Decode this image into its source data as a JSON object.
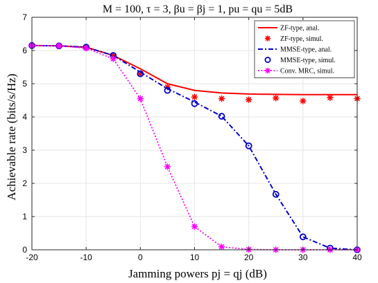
{
  "chart_data": {
    "type": "line",
    "title": "M = 100, τ = 3, βu = βj = 1, pu = qu = 5dB",
    "xlabel": "Jamming powers pj = qj (dB)",
    "ylabel": "Achievable rate (bits/s/Hz)",
    "xlim": [
      -20,
      40
    ],
    "ylim": [
      0,
      7
    ],
    "xticks": [
      -20,
      -10,
      0,
      10,
      20,
      30,
      40
    ],
    "yticks": [
      0,
      1,
      2,
      3,
      4,
      5,
      6,
      7
    ],
    "grid": true,
    "legend_position": "top-right",
    "series": [
      {
        "name": "ZF-type, anal.",
        "style": "solid-line",
        "color": "#ff0000",
        "x": [
          -20,
          -15,
          -10,
          -5,
          0,
          5,
          10,
          15,
          20,
          25,
          30,
          35,
          40
        ],
        "y": [
          6.15,
          6.14,
          6.1,
          5.85,
          5.45,
          5.0,
          4.8,
          4.72,
          4.69,
          4.68,
          4.67,
          4.67,
          4.67
        ]
      },
      {
        "name": "ZF-type, simul.",
        "style": "star-markers",
        "color": "#ff0000",
        "x": [
          -20,
          -15,
          -10,
          -5,
          0,
          5,
          10,
          15,
          20,
          25,
          30,
          35,
          40
        ],
        "y": [
          6.15,
          6.14,
          6.1,
          5.85,
          5.3,
          4.9,
          4.6,
          4.55,
          4.52,
          4.57,
          4.48,
          4.58,
          4.55
        ]
      },
      {
        "name": "MMSE-type, anal.",
        "style": "dash-dot-line",
        "color": "#0000cc",
        "x": [
          -20,
          -15,
          -10,
          -5,
          0,
          5,
          10,
          15,
          20,
          25,
          30,
          35,
          40
        ],
        "y": [
          6.15,
          6.14,
          6.1,
          5.85,
          5.35,
          4.85,
          4.45,
          4.02,
          3.13,
          1.67,
          0.39,
          0.05,
          0.0
        ]
      },
      {
        "name": "MMSE-type, simul.",
        "style": "circle-markers",
        "color": "#0000cc",
        "x": [
          -20,
          -15,
          -10,
          -5,
          0,
          5,
          10,
          15,
          20,
          25,
          30,
          35,
          40
        ],
        "y": [
          6.15,
          6.14,
          6.1,
          5.85,
          5.3,
          4.8,
          4.4,
          4.02,
          3.13,
          1.67,
          0.39,
          0.05,
          0.0
        ]
      },
      {
        "name": "Conv. MRC, simul.",
        "style": "dotted-line-star-markers",
        "color": "#ff00ff",
        "x": [
          -20,
          -15,
          -10,
          -5,
          0,
          5,
          10,
          15,
          20,
          25,
          30,
          35,
          40
        ],
        "y": [
          6.15,
          6.14,
          6.07,
          5.75,
          4.55,
          2.5,
          0.7,
          0.09,
          0.01,
          0.0,
          0.0,
          0.0,
          0.0
        ]
      }
    ]
  }
}
